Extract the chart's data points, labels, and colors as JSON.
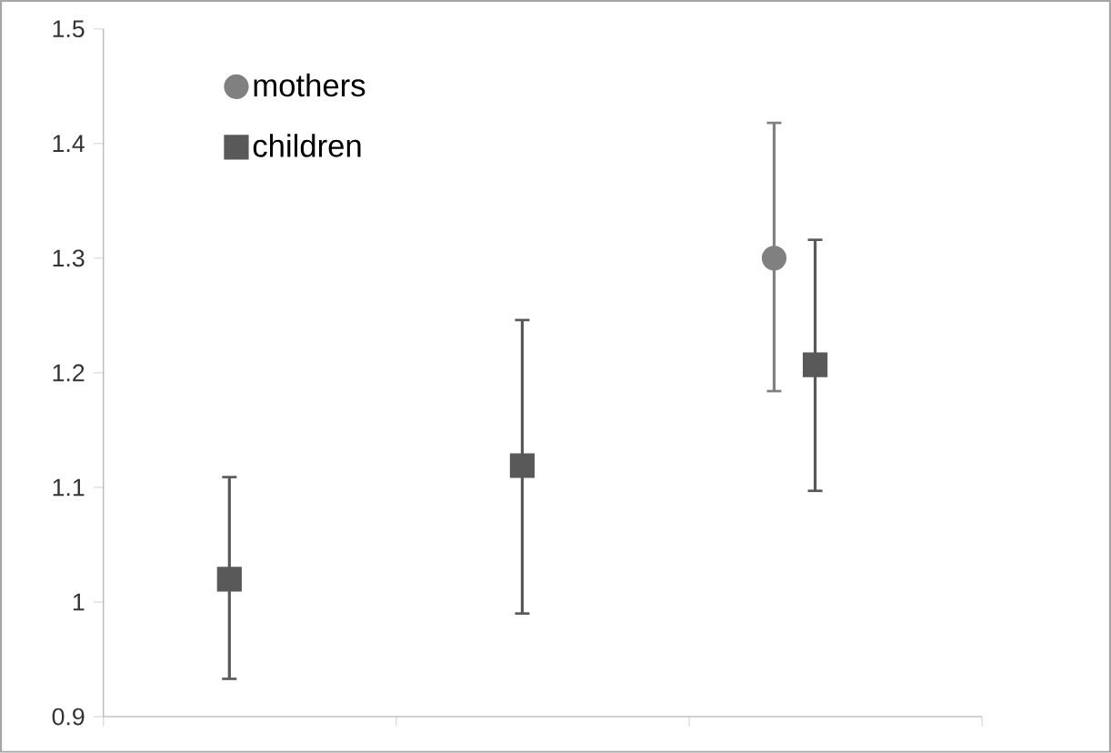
{
  "chart_data": {
    "type": "scatter",
    "categories": [
      null,
      null,
      null
    ],
    "series": [
      {
        "name": "mothers",
        "color": "#808080",
        "marker": "circle",
        "values": [
          null,
          null,
          1.3
        ],
        "errors": [
          null,
          null,
          [
            1.184,
            1.418
          ]
        ]
      },
      {
        "name": "children",
        "color": "#595959",
        "marker": "square",
        "values": [
          1.02,
          1.119,
          1.207
        ],
        "errors": [
          [
            0.933,
            1.109
          ],
          [
            0.99,
            1.246
          ],
          [
            1.097,
            1.316
          ]
        ]
      }
    ],
    "ylim": [
      0.9,
      1.5
    ],
    "yticks": [
      0.9,
      1,
      1.1,
      1.2,
      1.3,
      1.4,
      1.5
    ],
    "legend": "top left",
    "tick_labels": "y",
    "grid": false
  }
}
